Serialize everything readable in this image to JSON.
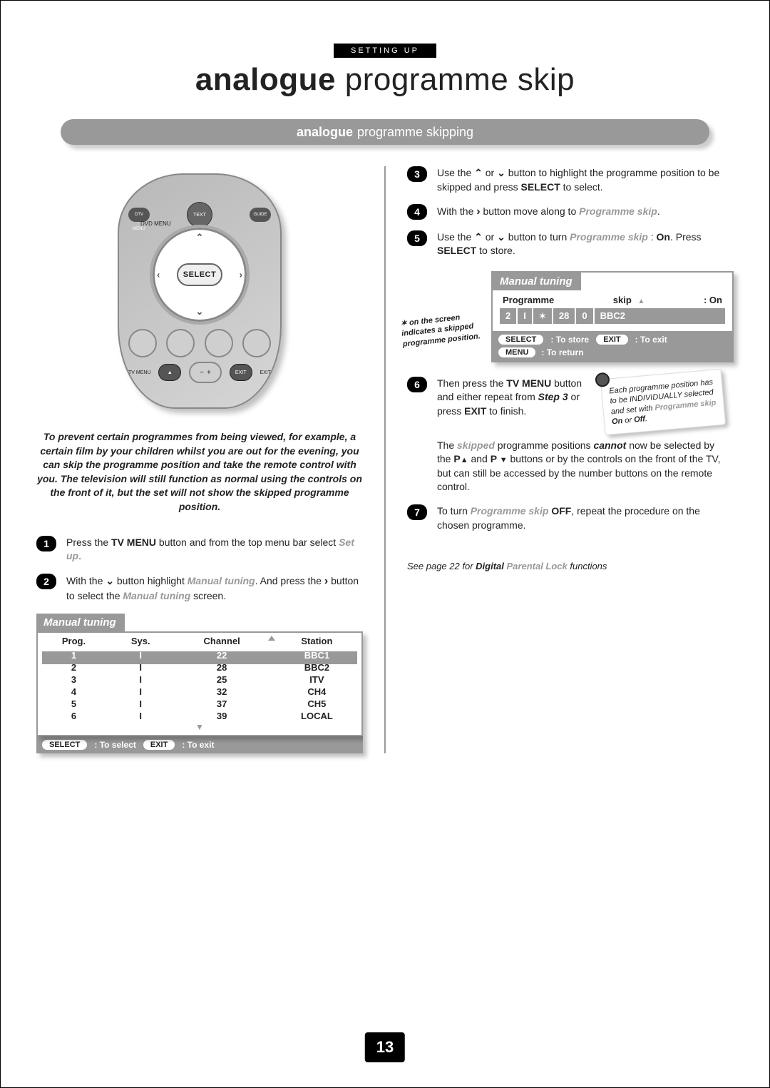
{
  "section_label": "SETTING UP",
  "title_bold": "analogue",
  "title_light": "programme skip",
  "banner_bold": "analogue",
  "banner_light": "programme skipping",
  "remote": {
    "dtv_menu": "DTV\nMENU",
    "text_btn": "TEXT",
    "guide_btn": "GUIDE",
    "dvd_menu": "DVD\nMENU",
    "select": "SELECT",
    "tv_menu": "TV\nMENU",
    "exit": "EXIT",
    "minus": "−",
    "plus": "+"
  },
  "intro": "To prevent certain programmes from being viewed, for example, a certain film by your children whilst you are out for the evening, you can skip the programme position and take the remote control with you. The television will still function as normal using the controls on the front of it, but the set will not show the skipped programme position.",
  "steps_left": [
    {
      "n": "1",
      "html": "Press the <b>TV MENU</b> button and from the top menu bar select <span class='gray-ital'>Set up</span>."
    },
    {
      "n": "2",
      "html": "With the <span class='arrow-down'></span> button highlight <span class='gray-ital'>Manual tuning</span>. And press the <span class='arrow-right'></span> button to select the <span class='gray-ital'>Manual tuning</span> screen."
    }
  ],
  "mt_table": {
    "header": "Manual tuning",
    "columns": [
      "Prog.",
      "Sys.",
      "Channel",
      "Station"
    ],
    "rows": [
      [
        "1",
        "I",
        "22",
        "BBC1"
      ],
      [
        "2",
        "I",
        "28",
        "BBC2"
      ],
      [
        "3",
        "I",
        "25",
        "ITV"
      ],
      [
        "4",
        "I",
        "32",
        "CH4"
      ],
      [
        "5",
        "I",
        "37",
        "CH5"
      ],
      [
        "6",
        "I",
        "39",
        "LOCAL"
      ]
    ],
    "selected_row_index": 0
  },
  "cmd_bar_left": {
    "select_pill": "SELECT",
    "select_txt": ": To select",
    "exit_pill": "EXIT",
    "exit_txt": ": To exit"
  },
  "steps_right": [
    {
      "n": "3",
      "html": "Use the <span class='arrow-up'></span> or <span class='arrow-down'></span> button to highlight the programme position to be skipped and press <b>SELECT</b> to select."
    },
    {
      "n": "4",
      "html": "With the <span class='arrow-right'></span> button move along to <span class='gray-ital'>Programme skip</span>."
    },
    {
      "n": "5",
      "html": "Use the <span class='arrow-up'></span> or <span class='arrow-down'></span> button to turn <span class='gray-ital'>Programme skip</span> : <b>On</b>. Press <b>SELECT</b> to store."
    }
  ],
  "osd": {
    "header": "Manual tuning",
    "prog_label": "Programme",
    "skip_label": "skip",
    "on_label": ": On",
    "cells": [
      "2",
      "I",
      "✶",
      "28",
      "0",
      "BBC2"
    ],
    "select_pill": "SELECT",
    "select_txt": ": To store",
    "exit_pill": "EXIT",
    "exit_txt": ": To exit",
    "menu_pill": "MENU",
    "menu_txt": ": To return"
  },
  "note_bubble": "✶ on the screen indicates a skipped programme position.",
  "step6": {
    "n": "6",
    "html": "Then press the <b>TV MENU</b> button and either repeat from <i class='hi'>Step 3</i> or press <b>EXIT</b> to finish."
  },
  "tip_bubble": "Each programme position has to be INDIVIDUALLY selected and set with <em>Programme skip</em> <b>On</b> or <b>Off</b>.",
  "para6b": "The <span class='gray-ital'>skipped</span> programme positions <i class='hi'>cannot</i> now be selected by the <b>P<span class='arrow-fill-up'></span></b> and <b>P <span class='arrow-fill-down'></span></b> buttons or by the controls on the front of the TV, but can still be accessed by the number buttons on the remote control.",
  "step7": {
    "n": "7",
    "html": "To turn <span class='gray-ital'>Programme skip</span> <b>OFF</b>, repeat the procedure on the chosen programme."
  },
  "see_ref": "See page 22 for <b>Digital</b> <em>Parental Lock</em> functions",
  "page_number": "13"
}
